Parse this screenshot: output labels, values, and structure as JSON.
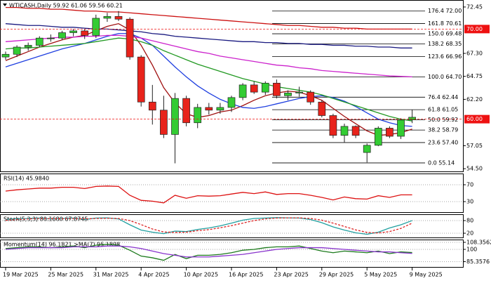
{
  "chart_data": [
    {
      "type": "candlestick",
      "title": "WTICASH,Daily  59.92 61.06 59.56 60.21",
      "categories": [
        "19 Mar 2025",
        null,
        null,
        null,
        "25 Mar 2025",
        null,
        null,
        null,
        "31 Mar 2025",
        null,
        null,
        null,
        "4 Apr 2025",
        null,
        null,
        null,
        "10 Apr 2025",
        null,
        null,
        null,
        "16 Apr 2025",
        null,
        null,
        null,
        "23 Apr 2025",
        null,
        null,
        null,
        "29 Apr 2025",
        null,
        null,
        null,
        "5 May 2025",
        null,
        null,
        null,
        "9 May 2025"
      ],
      "ohlc": [
        [
          66.9,
          67.5,
          66.6,
          67.2
        ],
        [
          67.2,
          68.2,
          66.9,
          68.0
        ],
        [
          68.0,
          68.5,
          67.6,
          68.2
        ],
        [
          68.2,
          69.2,
          68.0,
          69.0
        ],
        [
          69.0,
          69.4,
          68.6,
          69.0
        ],
        [
          69.0,
          69.8,
          68.8,
          69.6
        ],
        [
          69.6,
          70.0,
          69.2,
          69.8
        ],
        [
          69.8,
          70.0,
          68.9,
          69.3
        ],
        [
          69.3,
          71.6,
          69.0,
          71.2
        ],
        [
          71.2,
          71.8,
          70.8,
          71.4
        ],
        [
          71.4,
          72.0,
          70.9,
          71.1
        ],
        [
          71.1,
          71.3,
          66.6,
          66.9
        ],
        [
          66.9,
          67.1,
          61.4,
          61.9
        ],
        [
          61.9,
          63.8,
          59.4,
          61.0
        ],
        [
          61.0,
          62.6,
          57.9,
          58.3
        ],
        [
          58.3,
          62.9,
          55.1,
          62.3
        ],
        [
          62.3,
          62.6,
          59.2,
          59.6
        ],
        [
          59.6,
          61.7,
          59.0,
          61.3
        ],
        [
          61.3,
          61.8,
          60.5,
          61.0
        ],
        [
          61.0,
          61.8,
          60.6,
          61.3
        ],
        [
          61.3,
          62.6,
          60.8,
          62.4
        ],
        [
          62.4,
          64.0,
          62.1,
          63.8
        ],
        [
          63.8,
          64.2,
          62.8,
          63.0
        ],
        [
          63.0,
          64.2,
          62.7,
          64.0
        ],
        [
          64.0,
          64.4,
          62.3,
          62.6
        ],
        [
          62.6,
          63.2,
          62.1,
          62.9
        ],
        [
          62.9,
          63.6,
          62.5,
          63.0
        ],
        [
          63.0,
          63.2,
          61.6,
          61.9
        ],
        [
          61.9,
          62.1,
          60.2,
          60.4
        ],
        [
          60.4,
          60.6,
          57.9,
          58.2
        ],
        [
          58.2,
          59.5,
          57.4,
          59.2
        ],
        [
          59.2,
          59.3,
          57.9,
          58.2
        ],
        [
          56.3,
          57.3,
          55.2,
          57.1
        ],
        [
          57.1,
          59.2,
          57.0,
          59.0
        ],
        [
          59.0,
          59.2,
          57.9,
          58.1
        ],
        [
          58.1,
          60.1,
          57.8,
          59.9
        ],
        [
          59.92,
          61.06,
          59.56,
          60.21
        ]
      ],
      "up_color": "#33cc33",
      "down_color": "#e8231b",
      "series": [
        {
          "color": "#a01010",
          "values": [
            66.5,
            67.0,
            67.5,
            68.0,
            68.4,
            68.8,
            69.1,
            69.3,
            69.8,
            70.3,
            70.6,
            69.9,
            68.2,
            66.0,
            63.5,
            61.8,
            60.6,
            60.2,
            60.4,
            60.8,
            61.0,
            61.5,
            62.1,
            62.6,
            62.9,
            63.1,
            63.0,
            62.6,
            62.1,
            61.2,
            60.3,
            59.5,
            58.7,
            58.2,
            58.3,
            58.5,
            58.9
          ]
        },
        {
          "color": "#1f3fe0",
          "values": [
            65.8,
            66.2,
            66.6,
            67.0,
            67.4,
            67.8,
            68.1,
            68.4,
            68.8,
            69.2,
            69.5,
            69.5,
            69.0,
            68.2,
            67.0,
            65.8,
            64.7,
            63.7,
            62.9,
            62.2,
            61.7,
            61.3,
            61.2,
            61.4,
            61.7,
            62.0,
            62.3,
            62.5,
            62.6,
            62.4,
            62.0,
            61.4,
            60.7,
            60.0,
            59.6,
            59.3,
            59.2
          ]
        },
        {
          "color": "#229922",
          "values": [
            67.8,
            67.9,
            67.9,
            68.0,
            68.1,
            68.2,
            68.3,
            68.4,
            68.6,
            68.8,
            69.0,
            68.9,
            68.6,
            68.2,
            67.6,
            67.1,
            66.6,
            66.1,
            65.7,
            65.3,
            64.9,
            64.5,
            64.2,
            63.9,
            63.6,
            63.4,
            63.2,
            63.0,
            62.7,
            62.3,
            61.9,
            61.5,
            61.1,
            60.7,
            60.3,
            60.0,
            59.8
          ]
        },
        {
          "color": "#cc22cc",
          "values": [
            68.6,
            68.7,
            68.8,
            68.9,
            69.0,
            69.1,
            69.1,
            69.2,
            69.2,
            69.3,
            69.3,
            69.2,
            69.0,
            68.7,
            68.4,
            68.1,
            67.8,
            67.5,
            67.3,
            67.0,
            66.8,
            66.6,
            66.4,
            66.2,
            66.0,
            65.9,
            65.7,
            65.6,
            65.4,
            65.3,
            65.2,
            65.1,
            65.0,
            64.9,
            64.8,
            64.75,
            64.7
          ]
        },
        {
          "color": "#1a1a80",
          "values": [
            70.6,
            70.5,
            70.4,
            70.4,
            70.3,
            70.2,
            70.2,
            70.1,
            70.0,
            70.0,
            69.9,
            69.8,
            69.7,
            69.5,
            69.4,
            69.2,
            69.1,
            69.0,
            68.9,
            68.8,
            68.7,
            68.6,
            68.6,
            68.5,
            68.5,
            68.4,
            68.4,
            68.3,
            68.3,
            68.2,
            68.2,
            68.1,
            68.1,
            68.0,
            68.0,
            67.9,
            67.9
          ]
        },
        {
          "color": "#cc1111",
          "values": [
            72.4,
            72.4,
            72.3,
            72.3,
            72.2,
            72.2,
            72.1,
            72.0,
            72.0,
            71.9,
            71.9,
            71.8,
            71.7,
            71.6,
            71.5,
            71.4,
            71.3,
            71.2,
            71.1,
            71.0,
            70.9,
            70.8,
            70.7,
            70.6,
            70.5,
            70.4,
            70.4,
            70.3,
            70.2,
            70.2,
            70.1,
            70.1,
            70.0,
            70.0,
            70.0,
            70.0,
            70.0
          ]
        }
      ],
      "fib_levels": [
        {
          "label": "176.4 72.00",
          "value": 72.0
        },
        {
          "label": "161.8 70.61",
          "value": 70.61
        },
        {
          "label": "150.0 69.48",
          "value": 69.48
        },
        {
          "label": "138.2 68.35",
          "value": 68.35
        },
        {
          "label": "123.6 66.96",
          "value": 66.96
        },
        {
          "label": "100.0 64.70",
          "value": 64.7
        },
        {
          "label": "76.4 62.44",
          "value": 62.44
        },
        {
          "label": "61.8 61.05",
          "value": 61.05
        },
        {
          "label": "50.0 59.92",
          "value": 59.92
        },
        {
          "label": "38.2 58.79",
          "value": 58.79
        },
        {
          "label": "23.6 57.40",
          "value": 57.4
        },
        {
          "label": "0.0 55.14",
          "value": 55.14
        }
      ],
      "price_lines": [
        {
          "value": 70,
          "label": "70.00"
        },
        {
          "value": 60,
          "label": "60.00"
        }
      ],
      "price_line_color": "#ee1111",
      "ylim": [
        54.2,
        73.07
      ],
      "yticks": [
        72.45,
        {
          "value": 67.3,
          "label": "67.30"
        },
        64.75,
        {
          "value": 62.2,
          "label": "62.20"
        },
        57.05,
        {
          "value": 54.5,
          "label": "54.50"
        }
      ]
    },
    {
      "type": "line",
      "title": "RSI(14) 45.9840",
      "series": [
        {
          "color": "#dd1111",
          "values": [
            55,
            58,
            60,
            62,
            62,
            64,
            64,
            61,
            66,
            67,
            66,
            45,
            33,
            31,
            27,
            45,
            38,
            44,
            43,
            44,
            48,
            52,
            49,
            53,
            47,
            49,
            49,
            45,
            40,
            34,
            41,
            37,
            36,
            44,
            40,
            46,
            45.984
          ]
        }
      ],
      "ylim": [
        5,
        95
      ],
      "yticks": [
        70,
        30
      ],
      "grid": true
    },
    {
      "type": "line",
      "title": "Stoch(5,3,3) 80.1680 67.8745",
      "series": [
        {
          "color": "#20a0a0",
          "values": [
            85,
            88,
            90,
            92,
            88,
            90,
            92,
            85,
            92,
            93,
            88,
            60,
            35,
            25,
            18,
            30,
            28,
            38,
            45,
            55,
            68,
            82,
            90,
            92,
            94,
            93,
            92,
            85,
            70,
            50,
            35,
            22,
            15,
            25,
            45,
            60,
            80.168
          ]
        },
        {
          "color": "#dd2222",
          "dashed": true,
          "values": [
            82,
            85,
            88,
            90,
            89,
            89,
            90,
            88,
            90,
            91,
            90,
            80,
            61,
            40,
            26,
            24,
            25,
            32,
            37,
            46,
            56,
            68,
            80,
            88,
            92,
            93,
            93,
            90,
            82,
            68,
            52,
            36,
            24,
            21,
            28,
            43,
            67.8745
          ]
        }
      ],
      "ylim": [
        0,
        100
      ],
      "yticks": [
        80,
        20
      ],
      "grid": true
    },
    {
      "type": "line",
      "title": "Momentum(14) 96.1821 >MA(7) 95.1898",
      "series": [
        {
          "color": "#1c7a1c",
          "values": [
            101,
            102,
            103,
            103,
            102,
            103,
            104,
            102,
            105,
            106,
            105,
            99,
            92,
            90,
            87,
            94,
            89,
            93,
            93,
            94,
            96,
            99,
            100,
            102,
            103,
            103,
            104,
            101,
            98,
            96,
            98,
            97,
            96,
            98,
            95,
            97,
            96.1821
          ]
        },
        {
          "color": "#8833cc",
          "values": [
            100,
            101,
            102,
            102,
            102,
            102,
            103,
            103,
            103,
            104,
            104,
            103,
            101,
            98,
            95,
            93,
            91,
            91,
            91,
            92,
            93,
            94,
            96,
            98,
            100,
            101,
            102,
            102,
            102,
            101,
            100,
            99,
            98,
            97,
            97,
            96,
            95.1898
          ]
        }
      ],
      "ylim": [
        79.1,
        110
      ],
      "yticks": [
        108.3562,
        100,
        85.3576
      ],
      "grid": true
    }
  ]
}
